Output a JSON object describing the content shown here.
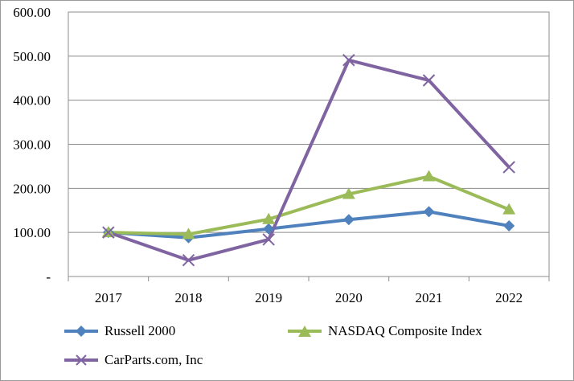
{
  "chart_data": {
    "type": "line",
    "title": "",
    "xlabel": "",
    "ylabel": "",
    "categories": [
      "2017",
      "2018",
      "2019",
      "2020",
      "2021",
      "2022"
    ],
    "y_ticks": [
      {
        "value": 0,
        "label": "-"
      },
      {
        "value": 100,
        "label": "100.00"
      },
      {
        "value": 200,
        "label": "200.00"
      },
      {
        "value": 300,
        "label": "300.00"
      },
      {
        "value": 400,
        "label": "400.00"
      },
      {
        "value": 500,
        "label": "500.00"
      },
      {
        "value": 600,
        "label": "600.00"
      }
    ],
    "ylim": [
      0,
      600
    ],
    "grid": true,
    "legend_position": "bottom",
    "series": [
      {
        "name": "Russell 2000",
        "color": "#4f81bd",
        "marker": "diamond",
        "values": [
          100,
          88,
          108,
          129,
          147,
          115
        ]
      },
      {
        "name": "NASDAQ Composite Index",
        "color": "#9bbb59",
        "marker": "triangle",
        "values": [
          100,
          96,
          130,
          187,
          227,
          152
        ]
      },
      {
        "name": "CarParts.com, Inc",
        "color": "#8064a2",
        "marker": "x",
        "values": [
          100,
          37,
          84,
          491,
          445,
          248
        ]
      }
    ]
  }
}
